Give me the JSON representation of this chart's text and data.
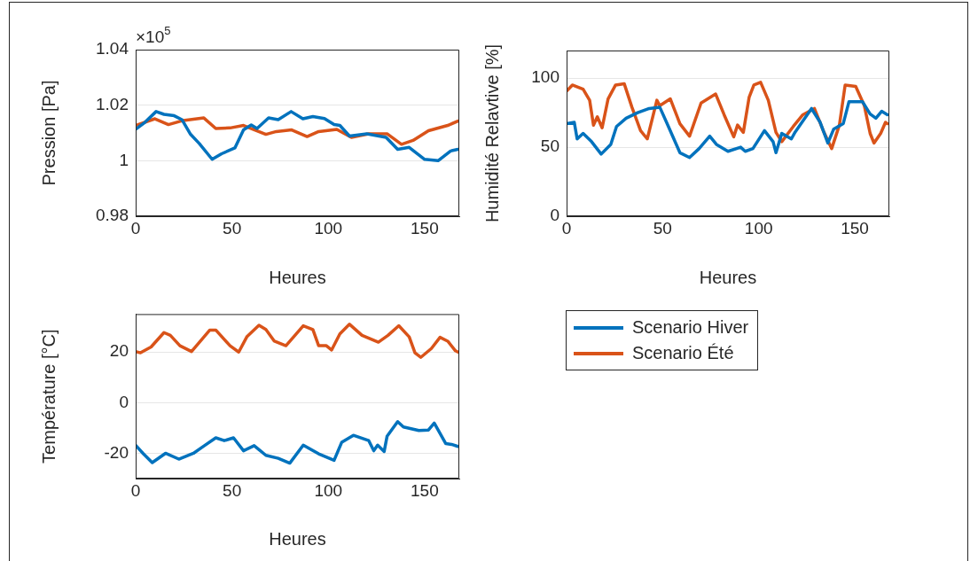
{
  "chart_data": [
    {
      "type": "line",
      "ylabel": "Pression [Pa]",
      "xlabel": "Heures",
      "annotations": [
        "×10$^{5}$"
      ],
      "xlim": [
        0,
        168
      ],
      "xticks": [
        0,
        50,
        100,
        150
      ],
      "ylim": [
        0.98,
        1.04
      ],
      "yticks": [
        0.98,
        1,
        1.02,
        1.04
      ],
      "grid": "y",
      "legend": false,
      "marker": "none",
      "line_style": "solid",
      "series": [
        {
          "color": "#0072bd",
          "x": [
            0,
            4.8,
            10.6,
            14.7,
            20,
            24,
            28.5,
            33,
            39.7,
            44.6,
            51.5,
            56,
            60,
            63,
            69,
            74,
            80.7,
            86.8,
            92,
            98,
            103,
            106,
            111,
            120,
            130,
            136,
            142,
            150,
            157,
            163.5,
            167.3
          ],
          "values": [
            1.0113,
            1.0138,
            1.0177,
            1.0167,
            1.0162,
            1.0148,
            1.0095,
            1.0062,
            1.0005,
            1.0025,
            1.0046,
            1.0111,
            1.0129,
            1.0116,
            1.0154,
            1.0148,
            1.0177,
            1.0151,
            1.0159,
            1.0152,
            1.013,
            1.0127,
            1.0089,
            1.0097,
            1.0084,
            1.0041,
            1.0048,
            1.0005,
            1.0,
            1.0035,
            1.0041
          ]
        },
        {
          "color": "#d95319",
          "x": [
            0,
            10,
            17,
            24.7,
            35.4,
            41.6,
            49,
            56,
            67.6,
            73,
            81,
            89,
            95,
            104.4,
            112,
            121,
            130.5,
            138,
            144,
            152,
            162,
            167.3
          ],
          "values": [
            1.0127,
            1.0151,
            1.013,
            1.0145,
            1.0154,
            1.0116,
            1.0118,
            1.0127,
            1.0095,
            1.0105,
            1.0111,
            1.0087,
            1.0105,
            1.0113,
            1.0084,
            1.0097,
            1.0097,
            1.0059,
            1.0073,
            1.0108,
            1.0127,
            1.0143
          ]
        }
      ]
    },
    {
      "type": "line",
      "ylabel": "Humidité Relavtive [%]",
      "xlabel": "Heures",
      "xlim": [
        0,
        168
      ],
      "xticks": [
        0,
        50,
        100,
        150
      ],
      "ylim": [
        0,
        120
      ],
      "yticks": [
        0,
        50,
        100
      ],
      "grid": "y",
      "legend": false,
      "marker": "none",
      "line_style": "solid",
      "series": [
        {
          "color": "#0072bd",
          "x": [
            0,
            4,
            5.5,
            8.6,
            13,
            18,
            23,
            26,
            31,
            37,
            43,
            48.5,
            53,
            59,
            64,
            69,
            74.5,
            78,
            84,
            90.6,
            93,
            97,
            103,
            107.5,
            109,
            112,
            117,
            119,
            123,
            127.5,
            132,
            136,
            139,
            144,
            147,
            154,
            158,
            161,
            164,
            167
          ],
          "values": [
            67,
            68,
            56,
            60,
            54,
            45,
            52,
            65,
            71,
            75,
            78,
            79,
            65,
            46,
            42.5,
            49,
            58,
            52,
            47,
            50,
            47,
            49,
            62,
            54,
            46,
            60,
            56,
            61,
            69,
            78,
            68,
            53,
            63,
            67,
            83,
            83,
            74,
            71,
            76,
            73.5
          ]
        },
        {
          "color": "#d95319",
          "x": [
            0,
            3,
            8.6,
            12,
            14,
            16,
            18.5,
            21.6,
            25.5,
            30,
            34,
            38.5,
            42,
            47,
            48.5,
            54,
            59,
            64,
            70,
            77.6,
            82,
            87,
            89,
            92,
            95,
            97.5,
            101,
            105,
            109,
            112,
            118,
            123,
            129,
            133.6,
            138,
            142,
            145,
            150.5,
            155,
            158,
            160,
            163.5,
            166,
            167
          ],
          "values": [
            90.6,
            95,
            92,
            84,
            66,
            72,
            64,
            85,
            95,
            96,
            79,
            62,
            56,
            84,
            80,
            85,
            67,
            58,
            82,
            88.5,
            73.5,
            57.5,
            66,
            60.7,
            86,
            95,
            97,
            84,
            60.7,
            54,
            65,
            73.5,
            78,
            62,
            49,
            66,
            95,
            94,
            80,
            60,
            53,
            60,
            68,
            67
          ]
        }
      ]
    },
    {
      "type": "line",
      "ylabel": "Température [°C]",
      "xlabel": "Heures",
      "xlim": [
        0,
        168
      ],
      "xticks": [
        0,
        50,
        100,
        150
      ],
      "ylim": [
        -30,
        35
      ],
      "yticks": [
        -20,
        0,
        20
      ],
      "grid": "y",
      "legend": "right",
      "marker": "none",
      "line_style": "solid",
      "series": [
        {
          "name": "Scenario Hiver",
          "color": "#0072bd",
          "x": [
            0,
            4,
            8.6,
            15.5,
            22.4,
            30,
            36,
            41.6,
            46,
            50.8,
            56,
            61.5,
            67.6,
            74,
            80,
            87,
            95,
            103,
            107,
            113,
            121,
            123.6,
            125.6,
            129,
            130.5,
            136,
            139,
            147,
            152,
            155,
            161,
            164,
            167.3
          ],
          "values": [
            -16.8,
            -20.2,
            -23.7,
            -20,
            -22.3,
            -20,
            -16.8,
            -13.9,
            -15,
            -13.9,
            -19,
            -17,
            -20.8,
            -22,
            -23.9,
            -16.8,
            -20.2,
            -22.8,
            -15.6,
            -12.9,
            -15,
            -19,
            -16.8,
            -19.3,
            -13.3,
            -7.5,
            -9.6,
            -11,
            -10.8,
            -8.1,
            -16.2,
            -16.5,
            -17.3
          ]
        },
        {
          "name": "Scenario Été",
          "color": "#d95319",
          "x": [
            0,
            2.5,
            8,
            14.7,
            18,
            23,
            29,
            38.5,
            41.6,
            49,
            53.5,
            57.7,
            64,
            67.6,
            72,
            78,
            82,
            87,
            92,
            95,
            99,
            101.7,
            106,
            111,
            117.5,
            126,
            131,
            136.6,
            142,
            145,
            148,
            153.5,
            158,
            162,
            166,
            167.3
          ],
          "values": [
            20.2,
            19.7,
            22,
            27.7,
            26.6,
            22.5,
            20.2,
            28.7,
            28.7,
            22.5,
            20,
            26,
            30.6,
            28.9,
            24.3,
            22.5,
            26,
            30.4,
            28.9,
            22.5,
            22.5,
            20.8,
            27.2,
            31,
            26.6,
            23.9,
            26.6,
            30.4,
            26,
            19.7,
            17.9,
            21.4,
            25.8,
            24.3,
            20.5,
            20
          ]
        }
      ]
    }
  ]
}
